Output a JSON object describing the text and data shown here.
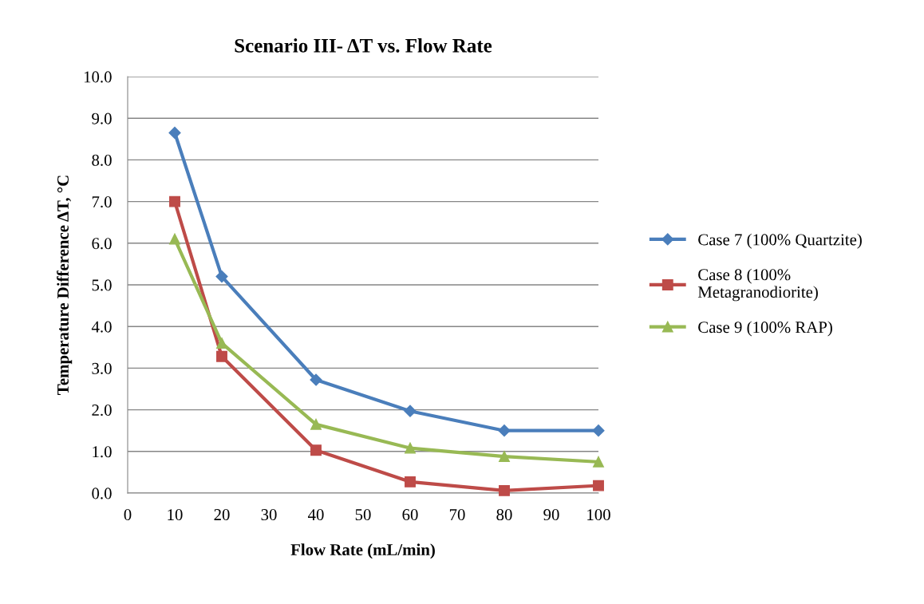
{
  "chart_data": {
    "type": "line",
    "title": "Scenario III- ΔT vs. Flow Rate",
    "xlabel": "Flow Rate (mL/min)",
    "ylabel": "Temperature Difference ΔT, °C",
    "x": [
      10,
      20,
      40,
      60,
      80,
      100
    ],
    "series": [
      {
        "name": "Case 7 (100% Quartzite)",
        "color": "#4a7ebb",
        "marker": "diamond",
        "values": [
          8.65,
          5.2,
          2.72,
          1.97,
          1.5,
          1.5
        ]
      },
      {
        "name": "Case 8 (100%\nMetagranodiorite)",
        "color": "#be4b48",
        "marker": "square",
        "values": [
          7.0,
          3.28,
          1.03,
          0.27,
          0.06,
          0.18
        ]
      },
      {
        "name": "Case 9 (100% RAP)",
        "color": "#98b954",
        "marker": "triangle",
        "values": [
          6.1,
          3.6,
          1.65,
          1.08,
          0.88,
          0.75
        ]
      }
    ],
    "xlim": [
      0,
      100
    ],
    "xticks": [
      0,
      10,
      20,
      30,
      40,
      50,
      60,
      70,
      80,
      90,
      100
    ],
    "ylim": [
      0,
      10
    ],
    "yticks": [
      {
        "value": 0,
        "label": "0.0"
      },
      {
        "value": 1,
        "label": "1.0"
      },
      {
        "value": 2,
        "label": "2.0"
      },
      {
        "value": 3,
        "label": "3.0"
      },
      {
        "value": 4,
        "label": "4.0"
      },
      {
        "value": 5,
        "label": "5.0"
      },
      {
        "value": 6,
        "label": "6.0"
      },
      {
        "value": 7,
        "label": "7.0"
      },
      {
        "value": 8,
        "label": "8.0"
      },
      {
        "value": 9,
        "label": "9.0"
      },
      {
        "value": 10,
        "label": "10.0"
      }
    ],
    "grid": "y",
    "legend": "right"
  }
}
